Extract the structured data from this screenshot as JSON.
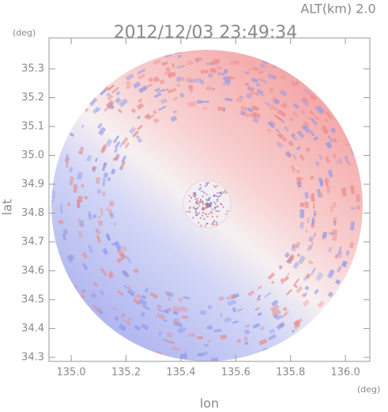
{
  "chart_data": {
    "type": "radar-image",
    "title": "2012/12/03 23:49:34",
    "subtitle": "ALT(km) 2.0",
    "y_unit": "(deg)",
    "x_unit": "(deg)",
    "ylabel": "lat",
    "xlabel": "lon",
    "xlim": [
      134.919,
      136.089
    ],
    "ylim": [
      34.286,
      35.407
    ],
    "xticks": [
      {
        "value": 135,
        "label": "135.0"
      },
      135.2,
      135.4,
      135.6,
      135.8,
      {
        "value": 136,
        "label": "136.0"
      }
    ],
    "yticks": [
      34.3,
      34.4,
      34.5,
      34.6,
      34.7,
      34.8,
      34.9,
      {
        "value": 35,
        "label": "35.0"
      },
      35.1,
      35.2,
      35.3
    ]
  }
}
